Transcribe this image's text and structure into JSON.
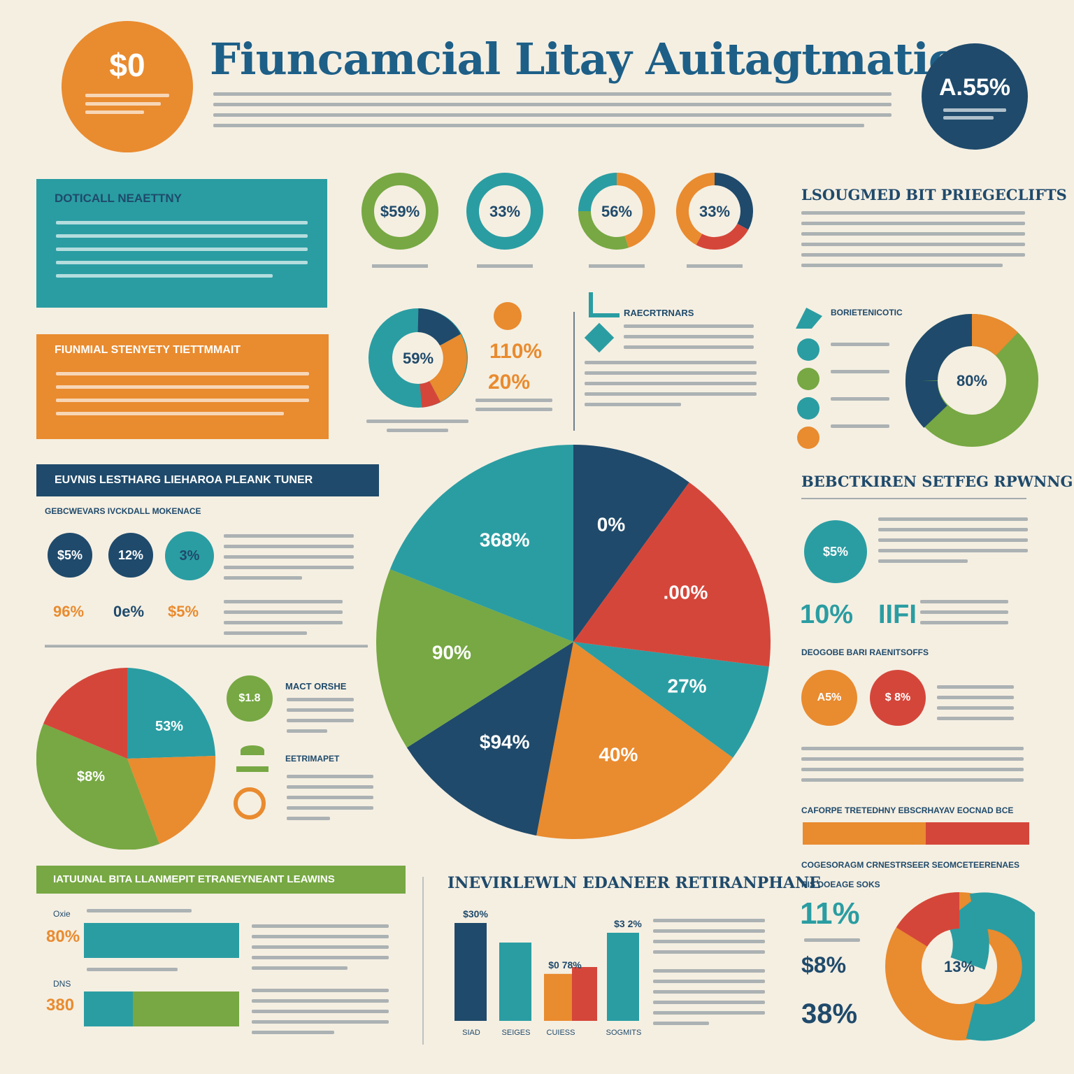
{
  "page": {
    "title": "Fiuncamcial Litay Auitagtmaticy",
    "colors": {
      "navy": "#1f4a6b",
      "teal": "#2a9da2",
      "orange": "#e98b2f",
      "green": "#77a843",
      "red": "#d5463a",
      "cream": "#f5efe2"
    }
  },
  "header": {
    "left_badge": {
      "symbol": "$0",
      "caption": ""
    },
    "right_badge": {
      "value": "A.55%",
      "caption": ""
    }
  },
  "panels": {
    "teal": {
      "title": "DOTICALL NEAETTNY"
    },
    "orange": {
      "title": "FIUNMIAL STENYETY TIETTMMAIT"
    },
    "navy": {
      "title": "EUVNIS LESTHARG LIEHAROA PLEANK TUNER"
    },
    "green": {
      "title": "IATUUNAL BITA LLANMEPIT ETRANEYNEANT LEAWINS"
    }
  },
  "donut_row": [
    {
      "label": "$59%",
      "colors": [
        "#77a843"
      ],
      "fracs": [
        1
      ]
    },
    {
      "label": "33%",
      "colors": [
        "#2a9da2"
      ],
      "fracs": [
        1
      ]
    },
    {
      "label": "56%",
      "colors": [
        "#e98b2f",
        "#77a843",
        "#2a9da2"
      ],
      "fracs": [
        0.45,
        0.3,
        0.25
      ]
    },
    {
      "label": "33%",
      "colors": [
        "#1f4a6b",
        "#d5463a",
        "#e98b2f"
      ],
      "fracs": [
        0.33,
        0.25,
        0.42
      ]
    }
  ],
  "middle_block": {
    "donut_label": "59%",
    "stat1": "110%",
    "stat2": "20%",
    "right_title": "RAECRTRNARS"
  },
  "right_top": {
    "title": "LSOUGMED BIT PRIEGECLIFTS",
    "legend_title": "BORIETENICOTIC",
    "donut_label": "80%"
  },
  "left_stats": {
    "subtitle": "GEBCWEVARS IVCKDALL MOKENACE",
    "circles": [
      "$5%",
      "12%",
      "3%"
    ],
    "figures": [
      "96%",
      "0e%",
      "$5%"
    ]
  },
  "left_pie": {
    "labels": [
      "53%",
      "$8%"
    ],
    "side_title": "MACT ORSHE",
    "side_title2": "EETRIMAPET",
    "badge": "$1.8"
  },
  "right_mid": {
    "title": "BEBCTKIREN SETFEG RPWNNG",
    "circle_label": "$5%",
    "stat1": "10%",
    "stat2": "IIFI",
    "subtitle": "DEOGOBE BARI RAENITSOFFS",
    "circles": [
      "A5%",
      "$ 8%"
    ]
  },
  "right_bottom": {
    "bar_caption": "CAFORPE TRETEDHNY EBSCRHAYAV EOCNAD BCE",
    "title": "COGESORAGM CRNESTRSEER SEOMCETEERENAES",
    "sub": "RIS DOEAGE SOKS",
    "stat1": "11%",
    "donut_label": "13%",
    "stat2": "$8%",
    "stat3": "38%"
  },
  "bottom_left": {
    "label1": "Oxie",
    "label2": "DNS",
    "fig1": "80%",
    "fig2": "380"
  },
  "chart_data": [
    {
      "type": "pie",
      "title": "",
      "slices": [
        {
          "label": "0%",
          "value": 10,
          "color": "#1f4a6b"
        },
        {
          "label": ".00%",
          "value": 17,
          "color": "#d5463a"
        },
        {
          "label": "27%",
          "value": 8,
          "color": "#2a9da2"
        },
        {
          "label": "40%",
          "value": 18,
          "color": "#e98b2f"
        },
        {
          "label": "$94%",
          "value": 13,
          "color": "#1f4a6b"
        },
        {
          "label": "90%",
          "value": 15,
          "color": "#77a843"
        },
        {
          "label": "368%",
          "value": 19,
          "color": "#2a9da2"
        }
      ]
    },
    {
      "type": "bar",
      "title": "INEVIRLEWLN EDANEER RETIRANPHANE",
      "categories": [
        "SIAD",
        "SEIGES",
        "CUIESS",
        "SOGMITS"
      ],
      "series": [
        {
          "values": [
            100,
            80,
            48,
            90
          ],
          "colors": [
            "#1f4a6b",
            "#2a9da2",
            "#e98b2f",
            "#2a9da2"
          ]
        },
        {
          "values": [
            0,
            0,
            55,
            0
          ],
          "colors": [
            "#d5463a"
          ]
        }
      ],
      "bar_labels": [
        "$30%",
        "",
        "$0 78%",
        "$3 2%"
      ],
      "ylim": [
        0,
        100
      ]
    }
  ]
}
